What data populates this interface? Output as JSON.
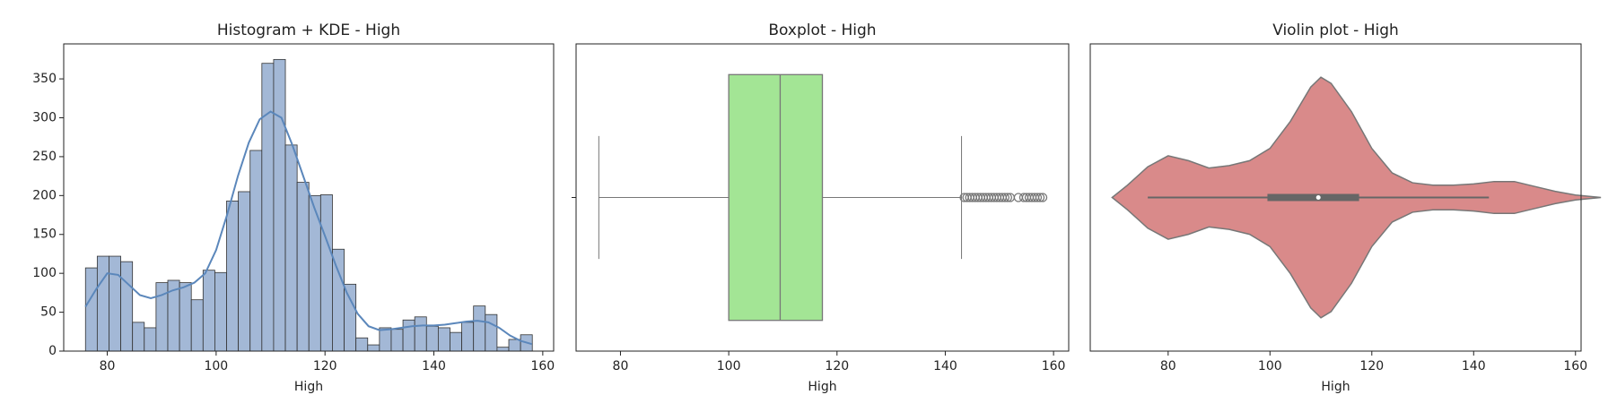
{
  "chart_data": [
    {
      "type": "histogram",
      "title": "Histogram + KDE - High",
      "xlabel": "High",
      "bins": [
        76,
        78.16,
        80.32,
        82.48,
        84.64,
        86.8,
        88.96,
        91.12,
        93.28,
        95.44,
        97.6,
        99.76,
        101.92,
        104.08,
        106.24,
        108.4,
        110.56,
        112.72,
        114.88,
        117.04,
        119.2,
        121.36,
        123.52,
        125.68,
        127.84,
        130,
        132.16,
        134.32,
        136.48,
        138.64,
        140.8,
        142.96,
        145.12,
        147.28,
        149.44,
        151.6,
        153.76,
        155.92,
        158.08
      ],
      "values": [
        107,
        122,
        122,
        115,
        37,
        30,
        88,
        91,
        88,
        66,
        104,
        101,
        193,
        205,
        258,
        370,
        375,
        265,
        217,
        200,
        201,
        131,
        86,
        17,
        8,
        30,
        28,
        40,
        44,
        32,
        30,
        24,
        37,
        58,
        47,
        5,
        15,
        21
      ],
      "color": "#a3b8d6",
      "kde": {
        "color": "#5b87bb",
        "x": [
          76,
          78,
          80,
          82,
          84,
          86,
          88,
          90,
          92,
          94,
          96,
          98,
          100,
          102,
          104,
          106,
          108,
          110,
          112,
          114,
          116,
          118,
          120,
          122,
          124,
          126,
          128,
          130,
          132,
          134,
          136,
          138,
          140,
          142,
          144,
          146,
          148,
          150,
          152,
          154,
          156,
          158
        ],
        "values": [
          57,
          80,
          100,
          98,
          85,
          72,
          68,
          72,
          78,
          82,
          88,
          100,
          130,
          175,
          225,
          268,
          298,
          308,
          300,
          265,
          225,
          185,
          148,
          110,
          75,
          48,
          32,
          27,
          28,
          30,
          32,
          33,
          33,
          34,
          36,
          38,
          39,
          37,
          30,
          20,
          13,
          9
        ]
      },
      "xlim": [
        72,
        162
      ],
      "xticks": [
        80,
        100,
        120,
        140,
        160
      ],
      "ylim": [
        0,
        395
      ],
      "yticks": [
        0,
        50,
        100,
        150,
        200,
        250,
        300,
        350
      ]
    },
    {
      "type": "box",
      "title": "Boxplot - High",
      "xlabel": "High",
      "color": "#a3e595",
      "whisker_low": 76,
      "q1": 100,
      "median": 109.5,
      "q3": 117.3,
      "whisker_high": 143,
      "outliers": [
        143.5,
        144,
        144.5,
        145,
        145.5,
        146,
        146.5,
        147,
        147.5,
        148,
        148.5,
        149,
        149.5,
        150,
        150.5,
        151,
        151.5,
        152,
        153.5,
        154.5,
        155,
        155.5,
        156,
        156.5,
        157,
        157.5,
        158
      ],
      "xlim": [
        71.8,
        162.8
      ],
      "xticks": [
        80,
        100,
        120,
        140,
        160
      ]
    },
    {
      "type": "violin",
      "title": "Violin plot - High",
      "xlabel": "High",
      "color": "#d98a8a",
      "x": [
        69,
        72,
        76,
        80,
        84,
        88,
        92,
        96,
        100,
        104,
        108,
        110,
        112,
        116,
        120,
        124,
        128,
        132,
        136,
        140,
        144,
        148,
        152,
        156,
        160,
        165
      ],
      "density": [
        0,
        0.1,
        0.25,
        0.34,
        0.3,
        0.24,
        0.26,
        0.3,
        0.4,
        0.62,
        0.9,
        0.98,
        0.93,
        0.7,
        0.4,
        0.2,
        0.12,
        0.1,
        0.1,
        0.11,
        0.13,
        0.13,
        0.09,
        0.05,
        0.02,
        0
      ],
      "whisker_low": 76,
      "q1": 99.5,
      "median": 109.5,
      "q3": 117.5,
      "whisker_high": 143,
      "xlim": [
        64.7,
        161.1
      ],
      "xticks": [
        80,
        100,
        120,
        140,
        160
      ]
    }
  ]
}
